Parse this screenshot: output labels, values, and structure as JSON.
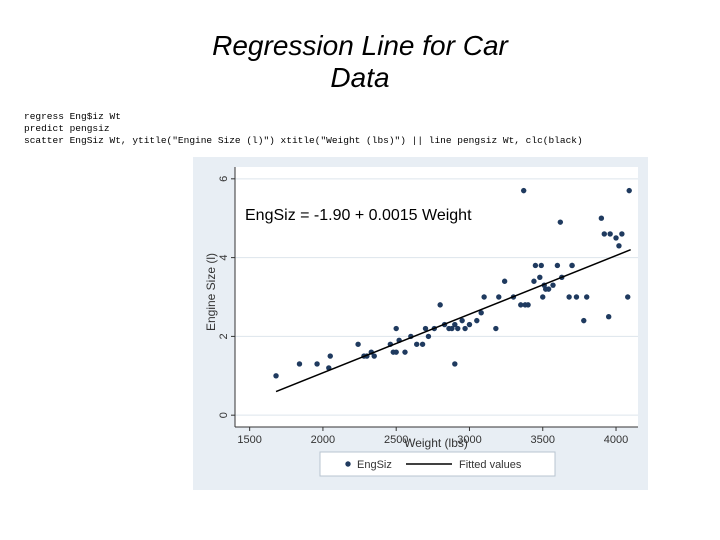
{
  "slide": {
    "title_line1": "Regression Line for Car",
    "title_line2": "Data"
  },
  "code": [
    "regress Eng$iz Wt",
    "predict pengsiz",
    "scatter EngSiz Wt, ytitle(\"Engine Size (l)\") xtitle(\"Weight (lbs)\") || line pengsiz Wt, clc(black)"
  ],
  "colors": {
    "points": "#1f3a5f",
    "line": "#000000",
    "outer_bg": "#e8eef4",
    "plot_bg": "#ffffff"
  },
  "chart_data": {
    "type": "scatter",
    "xlabel": "Weight (lbs)",
    "ylabel": "Engine Size (l)",
    "xlim": [
      1400,
      4150
    ],
    "ylim": [
      -0.3,
      6.3
    ],
    "x_ticks": [
      1500,
      2000,
      2500,
      3000,
      3500,
      4000
    ],
    "y_ticks": [
      0,
      2,
      4,
      6
    ],
    "grid": "horizontal",
    "legend_position": "bottom",
    "annotation": "EngSiz = -1.90 + 0.0015 Weight",
    "series": [
      {
        "name": "EngSiz",
        "kind": "scatter",
        "x": [
          1680,
          1840,
          1960,
          2040,
          2050,
          2240,
          2280,
          2300,
          2330,
          2350,
          2460,
          2480,
          2500,
          2500,
          2520,
          2560,
          2600,
          2640,
          2680,
          2700,
          2720,
          2760,
          2800,
          2830,
          2860,
          2880,
          2900,
          2900,
          2920,
          2950,
          2970,
          3000,
          3050,
          3080,
          3100,
          3180,
          3200,
          3240,
          3300,
          3350,
          3370,
          3380,
          3400,
          3440,
          3450,
          3480,
          3490,
          3500,
          3510,
          3520,
          3540,
          3570,
          3600,
          3620,
          3630,
          3680,
          3700,
          3700,
          3730,
          3780,
          3800,
          3900,
          3920,
          3950,
          3960,
          4000,
          4020,
          4040,
          4080,
          4090
        ],
        "y": [
          1.0,
          1.3,
          1.3,
          1.2,
          1.5,
          1.8,
          1.5,
          1.5,
          1.6,
          1.5,
          1.8,
          1.6,
          1.6,
          2.2,
          1.9,
          1.6,
          2.0,
          1.8,
          1.8,
          2.2,
          2.0,
          2.2,
          2.8,
          2.3,
          2.2,
          2.2,
          2.3,
          1.3,
          2.2,
          2.4,
          2.2,
          2.3,
          2.4,
          2.6,
          3.0,
          2.2,
          3.0,
          3.4,
          3.0,
          2.8,
          5.7,
          2.8,
          2.8,
          3.4,
          3.8,
          3.5,
          3.8,
          3.0,
          3.3,
          3.2,
          3.2,
          3.3,
          3.8,
          4.9,
          3.5,
          3.0,
          3.8,
          3.8,
          3.0,
          2.4,
          3.0,
          5.0,
          4.6,
          2.5,
          4.6,
          4.5,
          4.3,
          4.6,
          3.0,
          5.7
        ]
      },
      {
        "name": "Fitted values",
        "kind": "line",
        "x": [
          1680,
          4100
        ],
        "y": [
          0.6,
          4.2
        ]
      }
    ]
  }
}
